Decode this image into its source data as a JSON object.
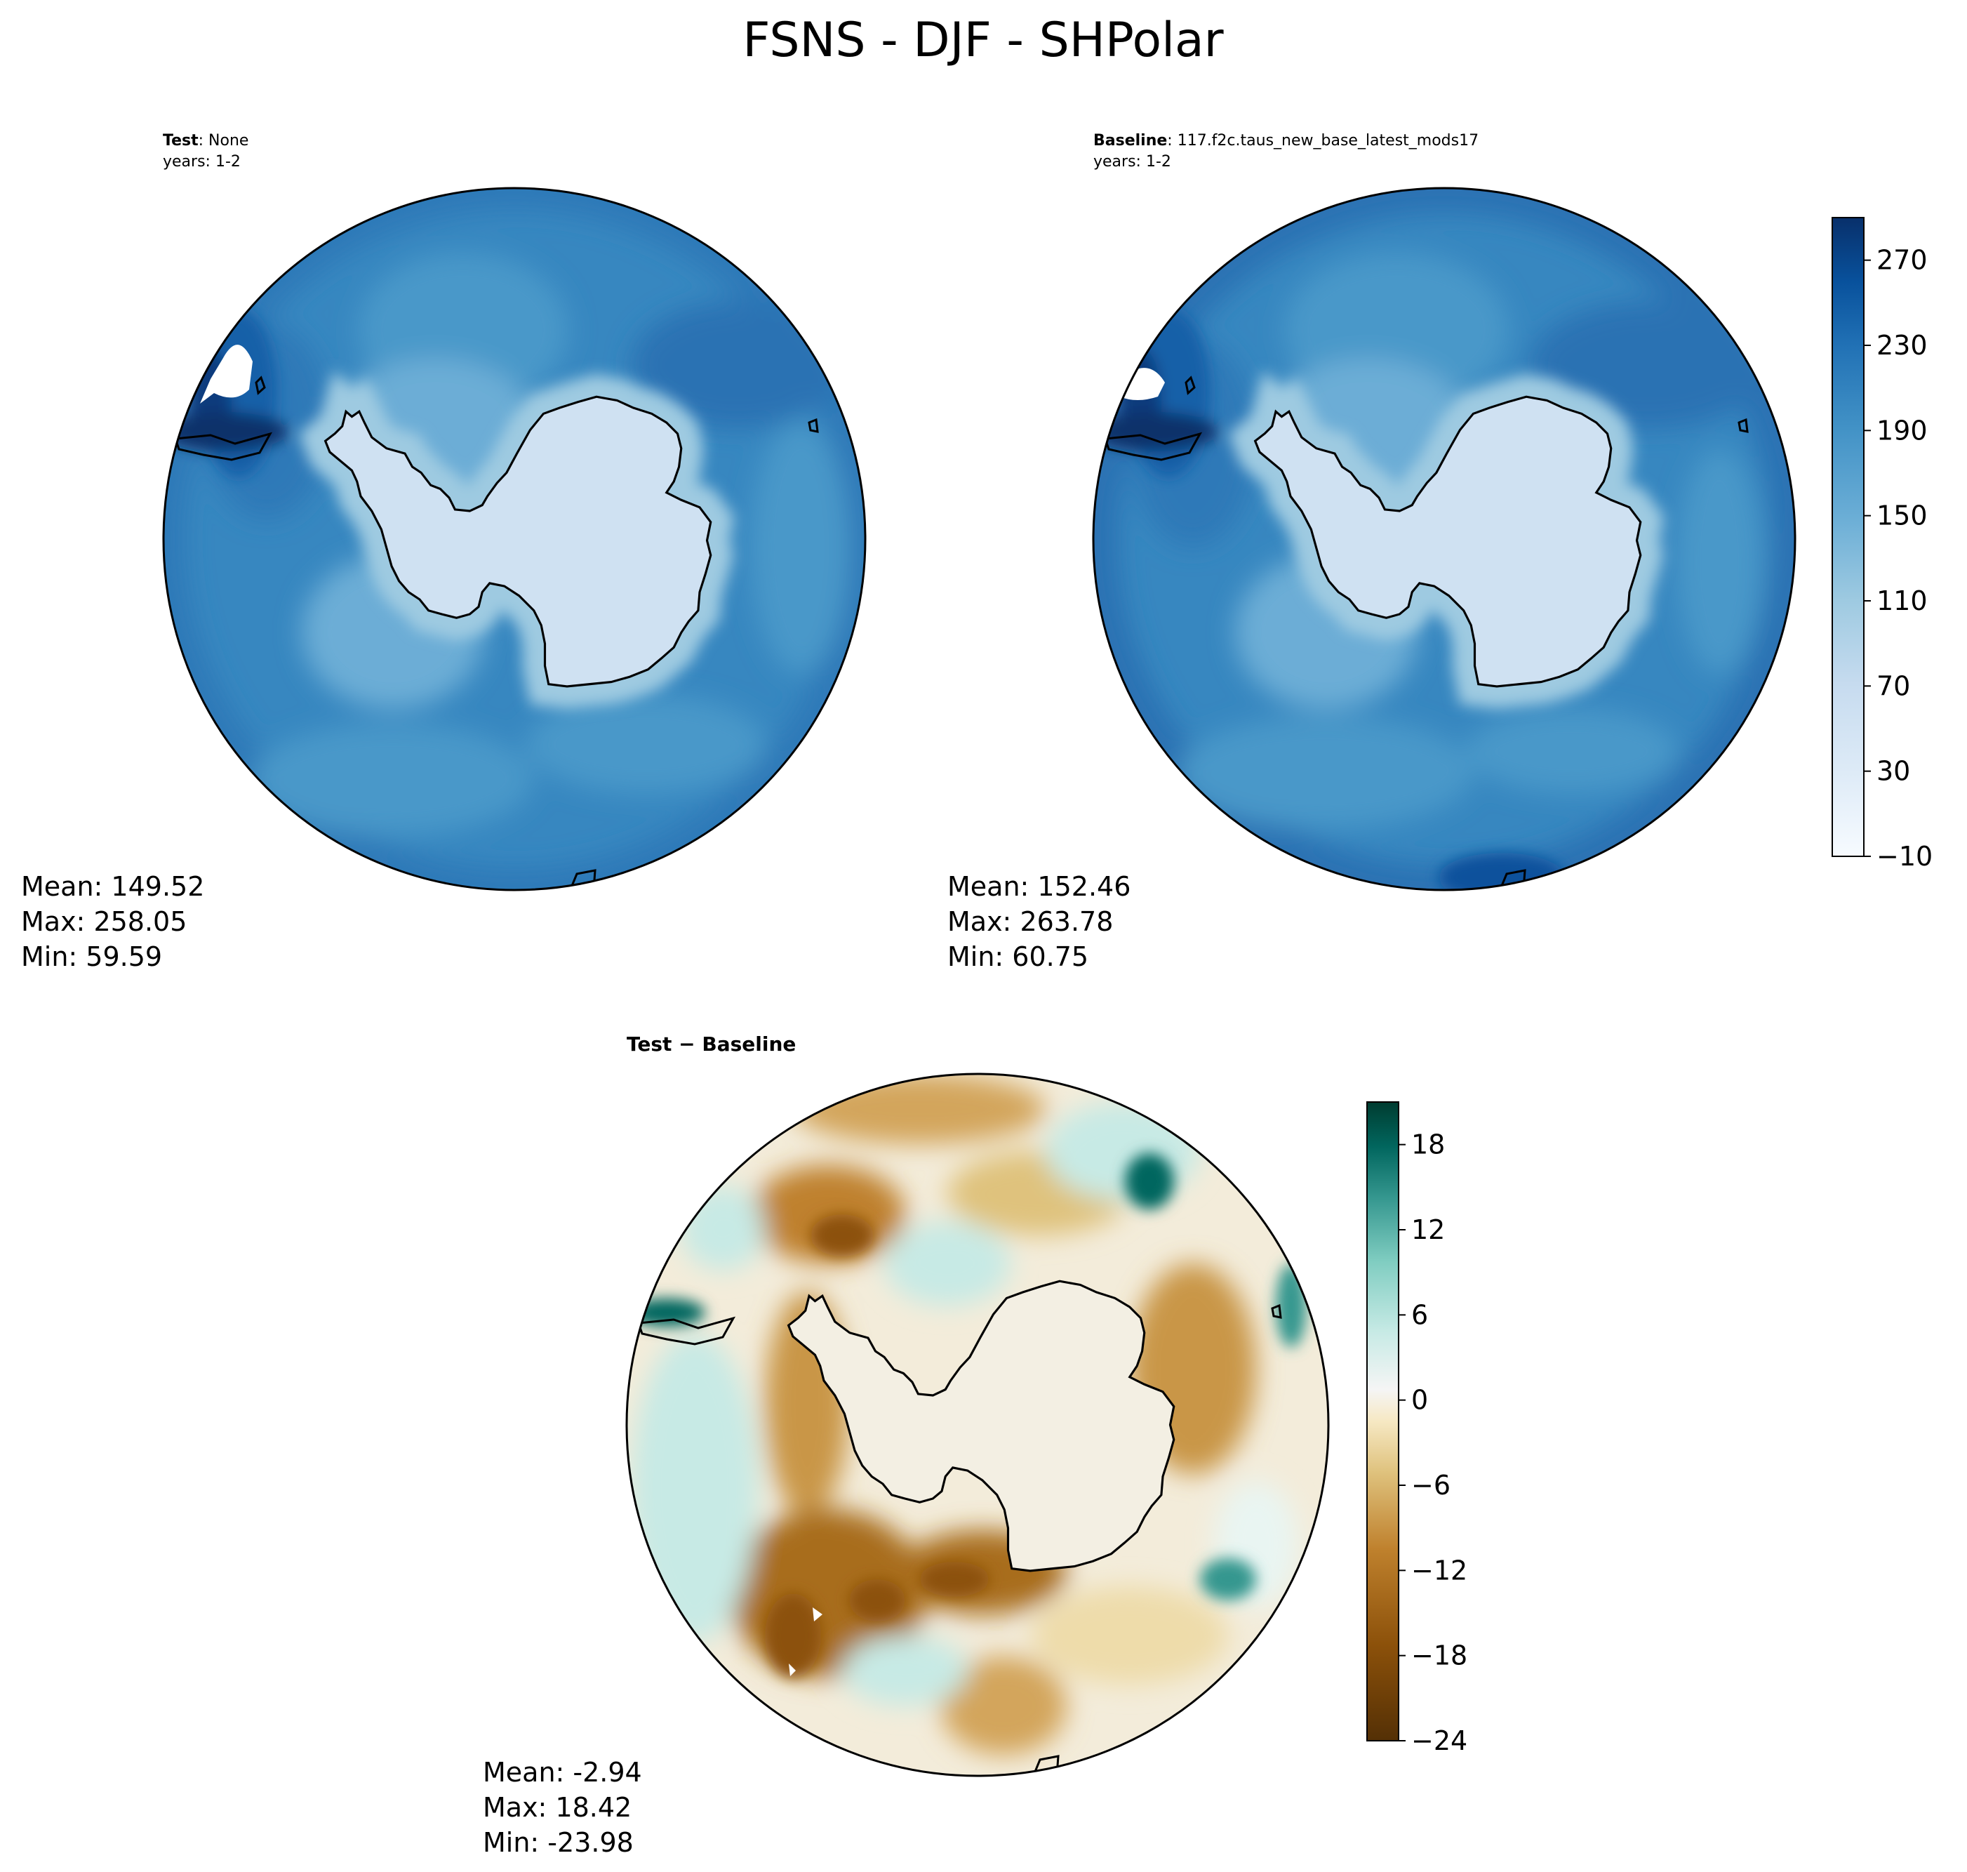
{
  "figure_title": "FSNS - DJF - SHPolar",
  "panels": [
    {
      "id": "test",
      "label_bold": "Test",
      "label_rest": ": None",
      "years": "years: 1-2",
      "stats": {
        "mean": "Mean: 149.52",
        "max": "Max: 258.05",
        "min": "Min: 59.59"
      }
    },
    {
      "id": "baseline",
      "label_bold": "Baseline",
      "label_rest": ": 117.f2c.taus_new_base_latest_mods17",
      "years": "years: 1-2",
      "stats": {
        "mean": "Mean: 152.46",
        "max": "Max: 263.78",
        "min": "Min: 60.75"
      }
    },
    {
      "id": "diff",
      "label_bold": "Test − Baseline",
      "label_rest": "",
      "years": "",
      "stats": {
        "mean": "Mean: -2.94",
        "max": "Max: 18.42",
        "min": "Min: -23.98"
      }
    }
  ],
  "chart_data": [
    {
      "type": "heatmap",
      "projection": "south-polar-stereographic",
      "panel": "test",
      "colormap": "Blues",
      "levels_range": [
        -10,
        290
      ],
      "colorbar_ticks": [
        -10,
        30,
        70,
        110,
        150,
        190,
        230,
        270
      ],
      "mean": 149.52,
      "max": 258.05,
      "min": 59.59
    },
    {
      "type": "heatmap",
      "projection": "south-polar-stereographic",
      "panel": "baseline",
      "colormap": "Blues",
      "levels_range": [
        -10,
        290
      ],
      "colorbar_ticks": [
        -10,
        30,
        70,
        110,
        150,
        190,
        230,
        270
      ],
      "mean": 152.46,
      "max": 263.78,
      "min": 60.75
    },
    {
      "type": "heatmap",
      "projection": "south-polar-stereographic",
      "panel": "diff",
      "colormap": "BrBG",
      "levels_range": [
        -24,
        21
      ],
      "colorbar_ticks": [
        -24,
        -18,
        -12,
        -6,
        0,
        6,
        12,
        18
      ],
      "mean": -2.94,
      "max": 18.42,
      "min": -23.98
    }
  ],
  "colorbars": {
    "blues": {
      "ticks": [
        "−10",
        "30",
        "70",
        "110",
        "150",
        "190",
        "230",
        "270"
      ]
    },
    "diff": {
      "ticks": [
        "−24",
        "−18",
        "−12",
        "−6",
        "0",
        "6",
        "12",
        "18"
      ]
    }
  },
  "colors": {
    "blues": [
      "#f7fbff",
      "#e3eef9",
      "#cfe1f2",
      "#b5d4e9",
      "#93c3df",
      "#6daed5",
      "#4b97c9",
      "#2f7ebc",
      "#1864aa",
      "#0a4a90",
      "#08306b"
    ],
    "brbg": [
      "#543005",
      "#8c510a",
      "#bf812d",
      "#dfc27d",
      "#f6e8c3",
      "#f5f5f5",
      "#c7eae5",
      "#80cdc1",
      "#35978f",
      "#01665e",
      "#003c30"
    ]
  }
}
